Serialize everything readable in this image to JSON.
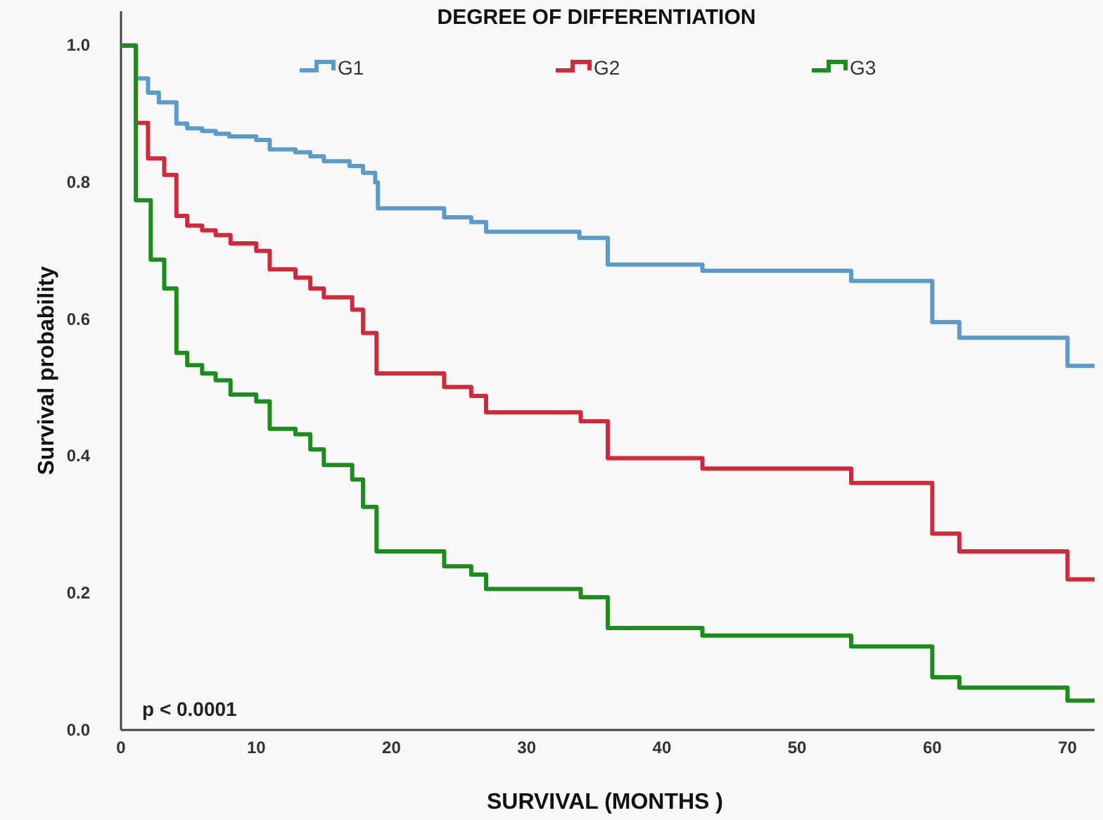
{
  "chart_data": {
    "type": "step",
    "legend_title": "DEGREE OF DIFFERENTIATION",
    "xlabel": "SURVIVAL (MONTHS )",
    "ylabel": "Survival probability",
    "annotations": [
      "p < 0.0001"
    ],
    "legend": "top",
    "grid": false,
    "xlim": [
      0,
      72
    ],
    "xticks": [
      0,
      10,
      20,
      30,
      40,
      50,
      60,
      70
    ],
    "ylim": [
      0,
      1.05
    ],
    "yticks": [
      {
        "value": 0,
        "label": "0.0"
      },
      {
        "value": 0.2,
        "label": "0.2"
      },
      {
        "value": 0.4,
        "label": "0.4"
      },
      {
        "value": 0.6,
        "label": "0.6"
      },
      {
        "value": 0.8,
        "label": "0.8"
      },
      {
        "value": 1,
        "label": "1.0"
      }
    ],
    "series": [
      {
        "name": "G1",
        "color": "#5a9bc9",
        "x": [
          0,
          1.1,
          2.0,
          2.8,
          4.1,
          4.9,
          6.0,
          7.0,
          8.0,
          10.0,
          11.0,
          12.9,
          14.0,
          15.0,
          16.9,
          17.9,
          18.8,
          19.0,
          23.9,
          25.9,
          27.0,
          33.9,
          36.0,
          43.0,
          54.0,
          60.0,
          62.0,
          70.0,
          72
        ],
        "values": [
          1.0,
          0.952,
          0.931,
          0.917,
          0.886,
          0.879,
          0.875,
          0.871,
          0.867,
          0.862,
          0.848,
          0.844,
          0.838,
          0.831,
          0.824,
          0.814,
          0.8,
          0.762,
          0.749,
          0.742,
          0.728,
          0.719,
          0.68,
          0.671,
          0.656,
          0.596,
          0.573,
          0.532,
          0.532
        ]
      },
      {
        "name": "G2",
        "color": "#cf2a3c",
        "x": [
          0,
          1.1,
          2.0,
          3.2,
          4.1,
          4.9,
          6.0,
          7.0,
          8.1,
          10.0,
          11.0,
          12.9,
          14.0,
          15.0,
          17.1,
          17.9,
          18.9,
          23.9,
          25.9,
          27.0,
          34.0,
          36.0,
          43.0,
          54.0,
          60.0,
          62.0,
          70.0,
          72
        ],
        "values": [
          1.0,
          0.887,
          0.835,
          0.811,
          0.751,
          0.737,
          0.73,
          0.723,
          0.711,
          0.7,
          0.673,
          0.661,
          0.645,
          0.632,
          0.614,
          0.58,
          0.521,
          0.501,
          0.488,
          0.464,
          0.451,
          0.397,
          0.382,
          0.361,
          0.287,
          0.261,
          0.22,
          0.22
        ]
      },
      {
        "name": "G3",
        "color": "#1c8c1c",
        "x": [
          0,
          1.1,
          2.2,
          3.2,
          4.1,
          4.9,
          6.0,
          7.0,
          8.1,
          10.0,
          11.0,
          12.9,
          14.0,
          15.0,
          17.1,
          17.9,
          18.9,
          23.9,
          25.9,
          27.0,
          34.0,
          36.0,
          43.0,
          54.0,
          60.0,
          62.0,
          70.0,
          72
        ],
        "values": [
          1.0,
          0.774,
          0.687,
          0.645,
          0.551,
          0.533,
          0.521,
          0.511,
          0.49,
          0.48,
          0.44,
          0.432,
          0.41,
          0.387,
          0.366,
          0.326,
          0.261,
          0.239,
          0.227,
          0.206,
          0.194,
          0.149,
          0.138,
          0.122,
          0.077,
          0.062,
          0.043,
          0.043
        ]
      }
    ]
  }
}
